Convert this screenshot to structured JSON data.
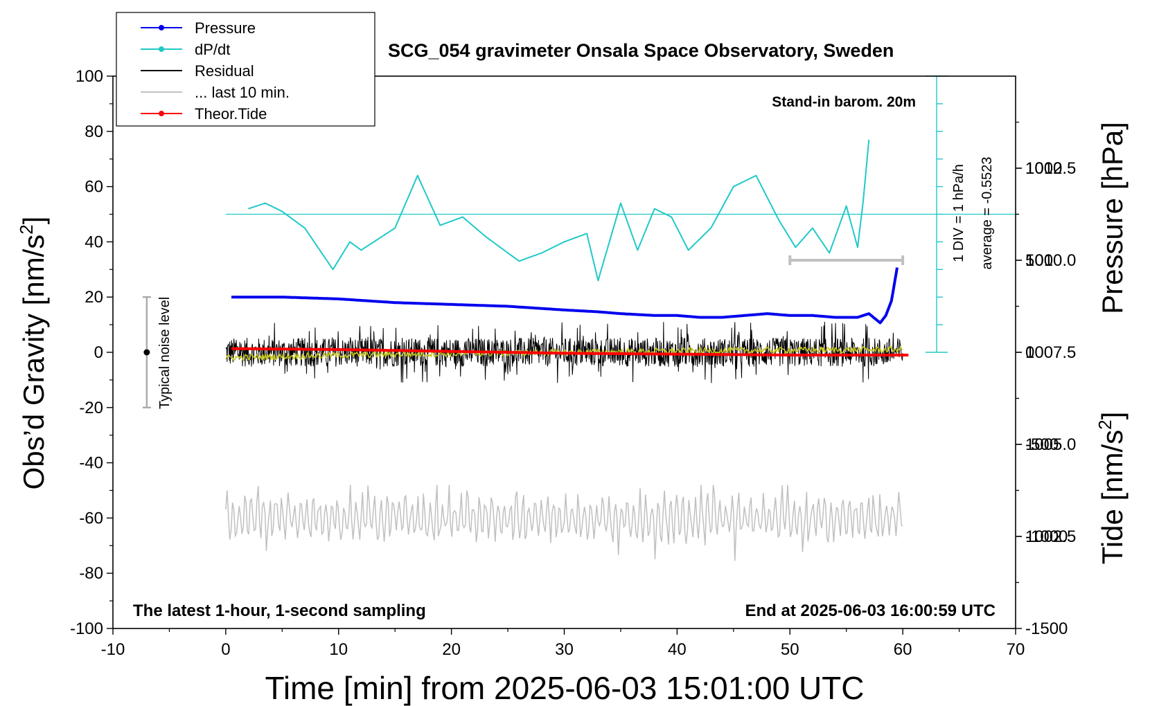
{
  "chart_data": {
    "type": "line",
    "title": "SCG_054 gravimeter Onsala Space Observatory, Sweden",
    "xlabel": "Time [min] from 2025-06-03 15:01:00 UTC",
    "ylabel_left": "Obs’d Gravity [nm/s2]",
    "ylabel_right_top": "Pressure [hPa]",
    "ylabel_right_bottom": "Tide [nm/s2]",
    "xlim": [
      -10,
      70
    ],
    "ylim": [
      -100,
      100
    ],
    "pressure_ylim": [
      1000.0,
      1015.0
    ],
    "tide_ylim": [
      -1500,
      1500
    ],
    "x_ticks": [
      "-10",
      "0",
      "10",
      "20",
      "30",
      "40",
      "50",
      "60",
      "70"
    ],
    "y_ticks": [
      "-100",
      "-80",
      "-60",
      "-40",
      "-20",
      "0",
      "20",
      "40",
      "60",
      "80",
      "100"
    ],
    "pressure_ticks": [
      "1002.5",
      "1005.0",
      "1007.5",
      "1010.0",
      "1012.5"
    ],
    "tide_ticks": [
      "-1500",
      "-1000",
      "-500",
      "0",
      "500",
      "1000"
    ],
    "grid": false,
    "legend_position": "top-left",
    "legend": [
      {
        "label": "Pressure",
        "color": "#0000ee",
        "marker": true
      },
      {
        "label": "dP/dt",
        "color": "#20c8c8",
        "marker": true
      },
      {
        "label": "Residual",
        "color": "#000000",
        "marker": false
      },
      {
        "label": "... last 10 min.",
        "color": "#c0c0c0",
        "marker": false
      },
      {
        "label": "Theor.Tide",
        "color": "#ff0000",
        "marker": true
      }
    ],
    "annotations": {
      "barometer": "Stand-in barom. 20m",
      "scale_div": "1 DIV = 1 hPa/h",
      "average": "average = -0.5523",
      "noise": "Typical noise level",
      "bottom_left": "The latest 1-hour, 1-second sampling",
      "bottom_right": "End at 2025-06-03 16:00:59 UTC"
    },
    "noise_bar": {
      "x": -7,
      "center": 0,
      "half_range": 20
    },
    "last10_bar": {
      "x_start": 50,
      "x_end": 60,
      "tide_value": 500
    },
    "dpdt_scale": {
      "x": 63,
      "y_bottom": 0,
      "y_top": 100,
      "tick_step": 10,
      "zero_level_gravity": 50
    },
    "series": [
      {
        "name": "Pressure",
        "axis": "pressure",
        "color": "#0000ee",
        "x": [
          0.5,
          5,
          10,
          15,
          20,
          25,
          30,
          33,
          35,
          38,
          40,
          42,
          44,
          46,
          48,
          50,
          52,
          54,
          56,
          57,
          58,
          58.5,
          59,
          59.5
        ],
        "values": [
          1009.0,
          1009.0,
          1008.95,
          1008.85,
          1008.8,
          1008.75,
          1008.65,
          1008.6,
          1008.55,
          1008.5,
          1008.5,
          1008.45,
          1008.45,
          1008.5,
          1008.55,
          1008.5,
          1008.5,
          1008.45,
          1008.45,
          1008.55,
          1008.3,
          1008.5,
          1008.9,
          1009.8
        ]
      },
      {
        "name": "dP/dt",
        "axis": "gravity",
        "color": "#20c8c8",
        "x": [
          2,
          3.5,
          5,
          7,
          9.5,
          11,
          12,
          15,
          17,
          19,
          21,
          23,
          26,
          28,
          30,
          32,
          33,
          35,
          36.5,
          38,
          39.5,
          41,
          43,
          45,
          47,
          49,
          50.5,
          52,
          53.5,
          55,
          56,
          56.5,
          57
        ],
        "values": [
          52,
          54,
          51,
          45,
          30,
          40,
          37,
          45,
          64,
          46,
          49,
          42,
          33,
          36,
          40,
          43,
          26,
          54,
          37,
          52,
          49,
          37,
          45,
          60,
          64,
          48,
          38,
          45,
          36,
          53,
          38,
          55,
          77
        ]
      },
      {
        "name": "Residual",
        "axis": "gravity",
        "color": "#000000",
        "x_range": [
          0,
          60
        ],
        "noise_range": [
          -16,
          15
        ]
      },
      {
        "name": "Residual (smoothed)",
        "axis": "gravity",
        "color": "#c8c820",
        "x": [
          0,
          10,
          20,
          30,
          40,
          50,
          60
        ],
        "values": [
          -2,
          -1,
          -0.5,
          0,
          0.5,
          0.8,
          1
        ]
      },
      {
        "name": "... last 10 min.",
        "axis": "gravity",
        "color": "#c0c0c0",
        "x_range": [
          0,
          60
        ],
        "base": -60,
        "min": -78,
        "max": -48
      },
      {
        "name": "Theor.Tide",
        "axis": "tide",
        "color": "#ff0000",
        "x": [
          0.5,
          10,
          20,
          30,
          40,
          50,
          60.5
        ],
        "values": [
          20,
          15,
          5,
          -5,
          -10,
          -15,
          -15
        ]
      }
    ]
  }
}
